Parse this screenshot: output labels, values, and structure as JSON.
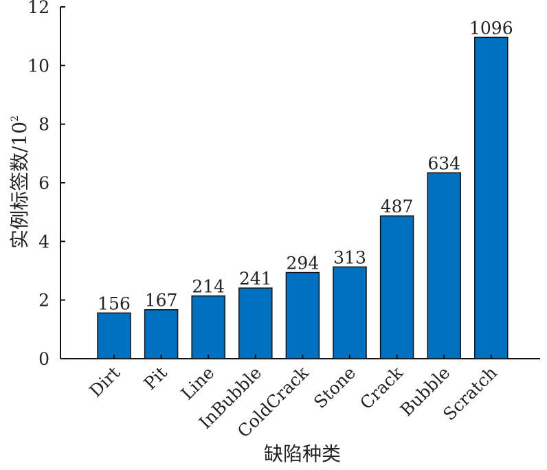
{
  "chart_data": {
    "type": "bar",
    "categories": [
      "Dirt",
      "Pit",
      "Line",
      "InBubble",
      "ColdCrack",
      "Stone",
      "Crack",
      "Bubble",
      "Scratch"
    ],
    "values": [
      1.56,
      1.67,
      2.14,
      2.41,
      2.94,
      3.13,
      4.87,
      6.34,
      10.96
    ],
    "data_labels": [
      "156",
      "167",
      "214",
      "241",
      "294",
      "313",
      "487",
      "634",
      "1096"
    ],
    "xlabel": "缺陷种类",
    "ylabel": "实例标签数/10",
    "ylabel_superscript": "2",
    "ylim": [
      0,
      12
    ],
    "yticks": [
      0,
      2,
      4,
      6,
      8,
      10,
      12
    ],
    "grid": false,
    "bar_color": "#0070c0"
  }
}
